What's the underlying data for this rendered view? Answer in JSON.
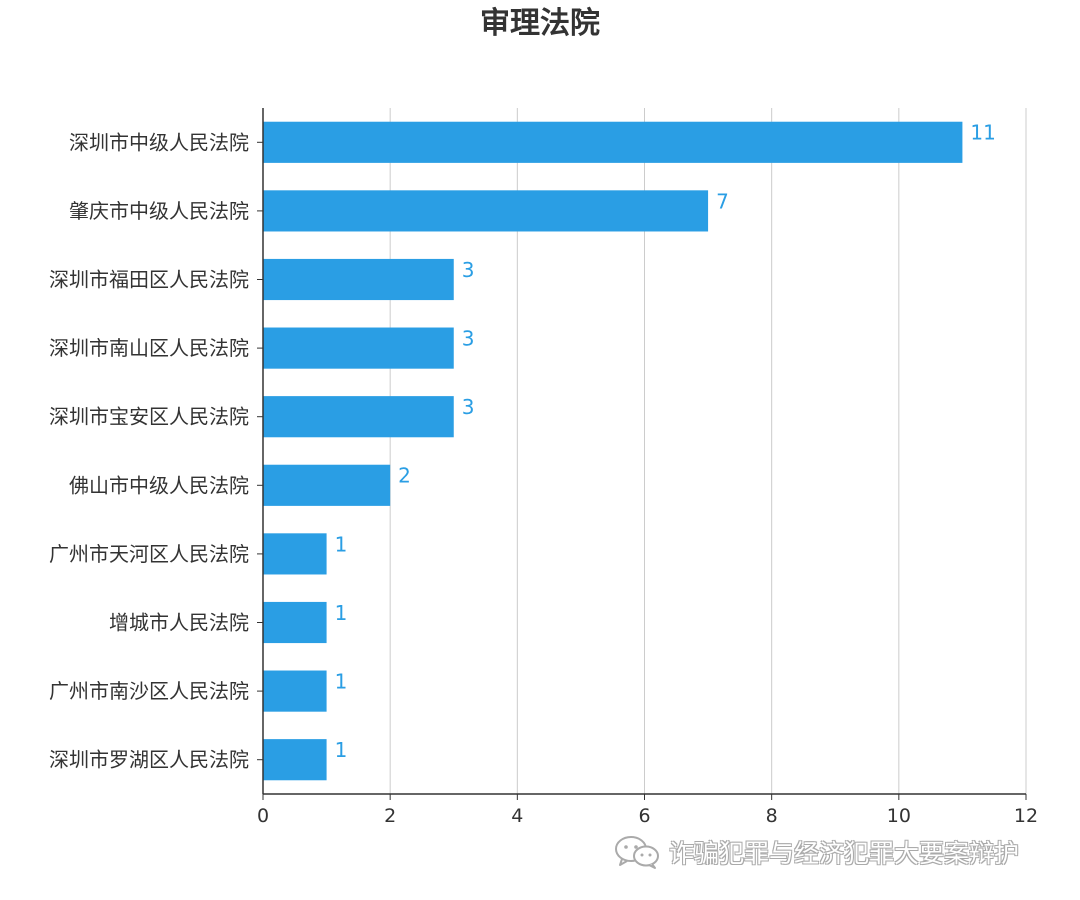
{
  "chart_data": {
    "type": "bar",
    "orientation": "horizontal",
    "title": "审理法院",
    "categories": [
      "深圳市中级人民法院",
      "肇庆市中级人民法院",
      "深圳市福田区人民法院",
      "深圳市南山区人民法院",
      "深圳市宝安区人民法院",
      "佛山市中级人民法院",
      "广州市天河区人民法院",
      "增城市人民法院",
      "广州市南沙区人民法院",
      "深圳市罗湖区人民法院"
    ],
    "values": [
      11,
      7,
      3,
      3,
      3,
      2,
      1,
      1,
      1,
      1
    ],
    "xlim": [
      0,
      12
    ],
    "xticks": [
      0,
      2,
      4,
      6,
      8,
      10,
      12
    ],
    "grid": true,
    "data_labels": true,
    "bar_color": "#2a9ee4",
    "label_color": "#2a9ee4",
    "grid_color": "#cccccc",
    "axis_color": "#333333"
  },
  "watermark": {
    "icon": "wechat-icon",
    "text": "诈骗犯罪与经济犯罪大要案辩护"
  }
}
